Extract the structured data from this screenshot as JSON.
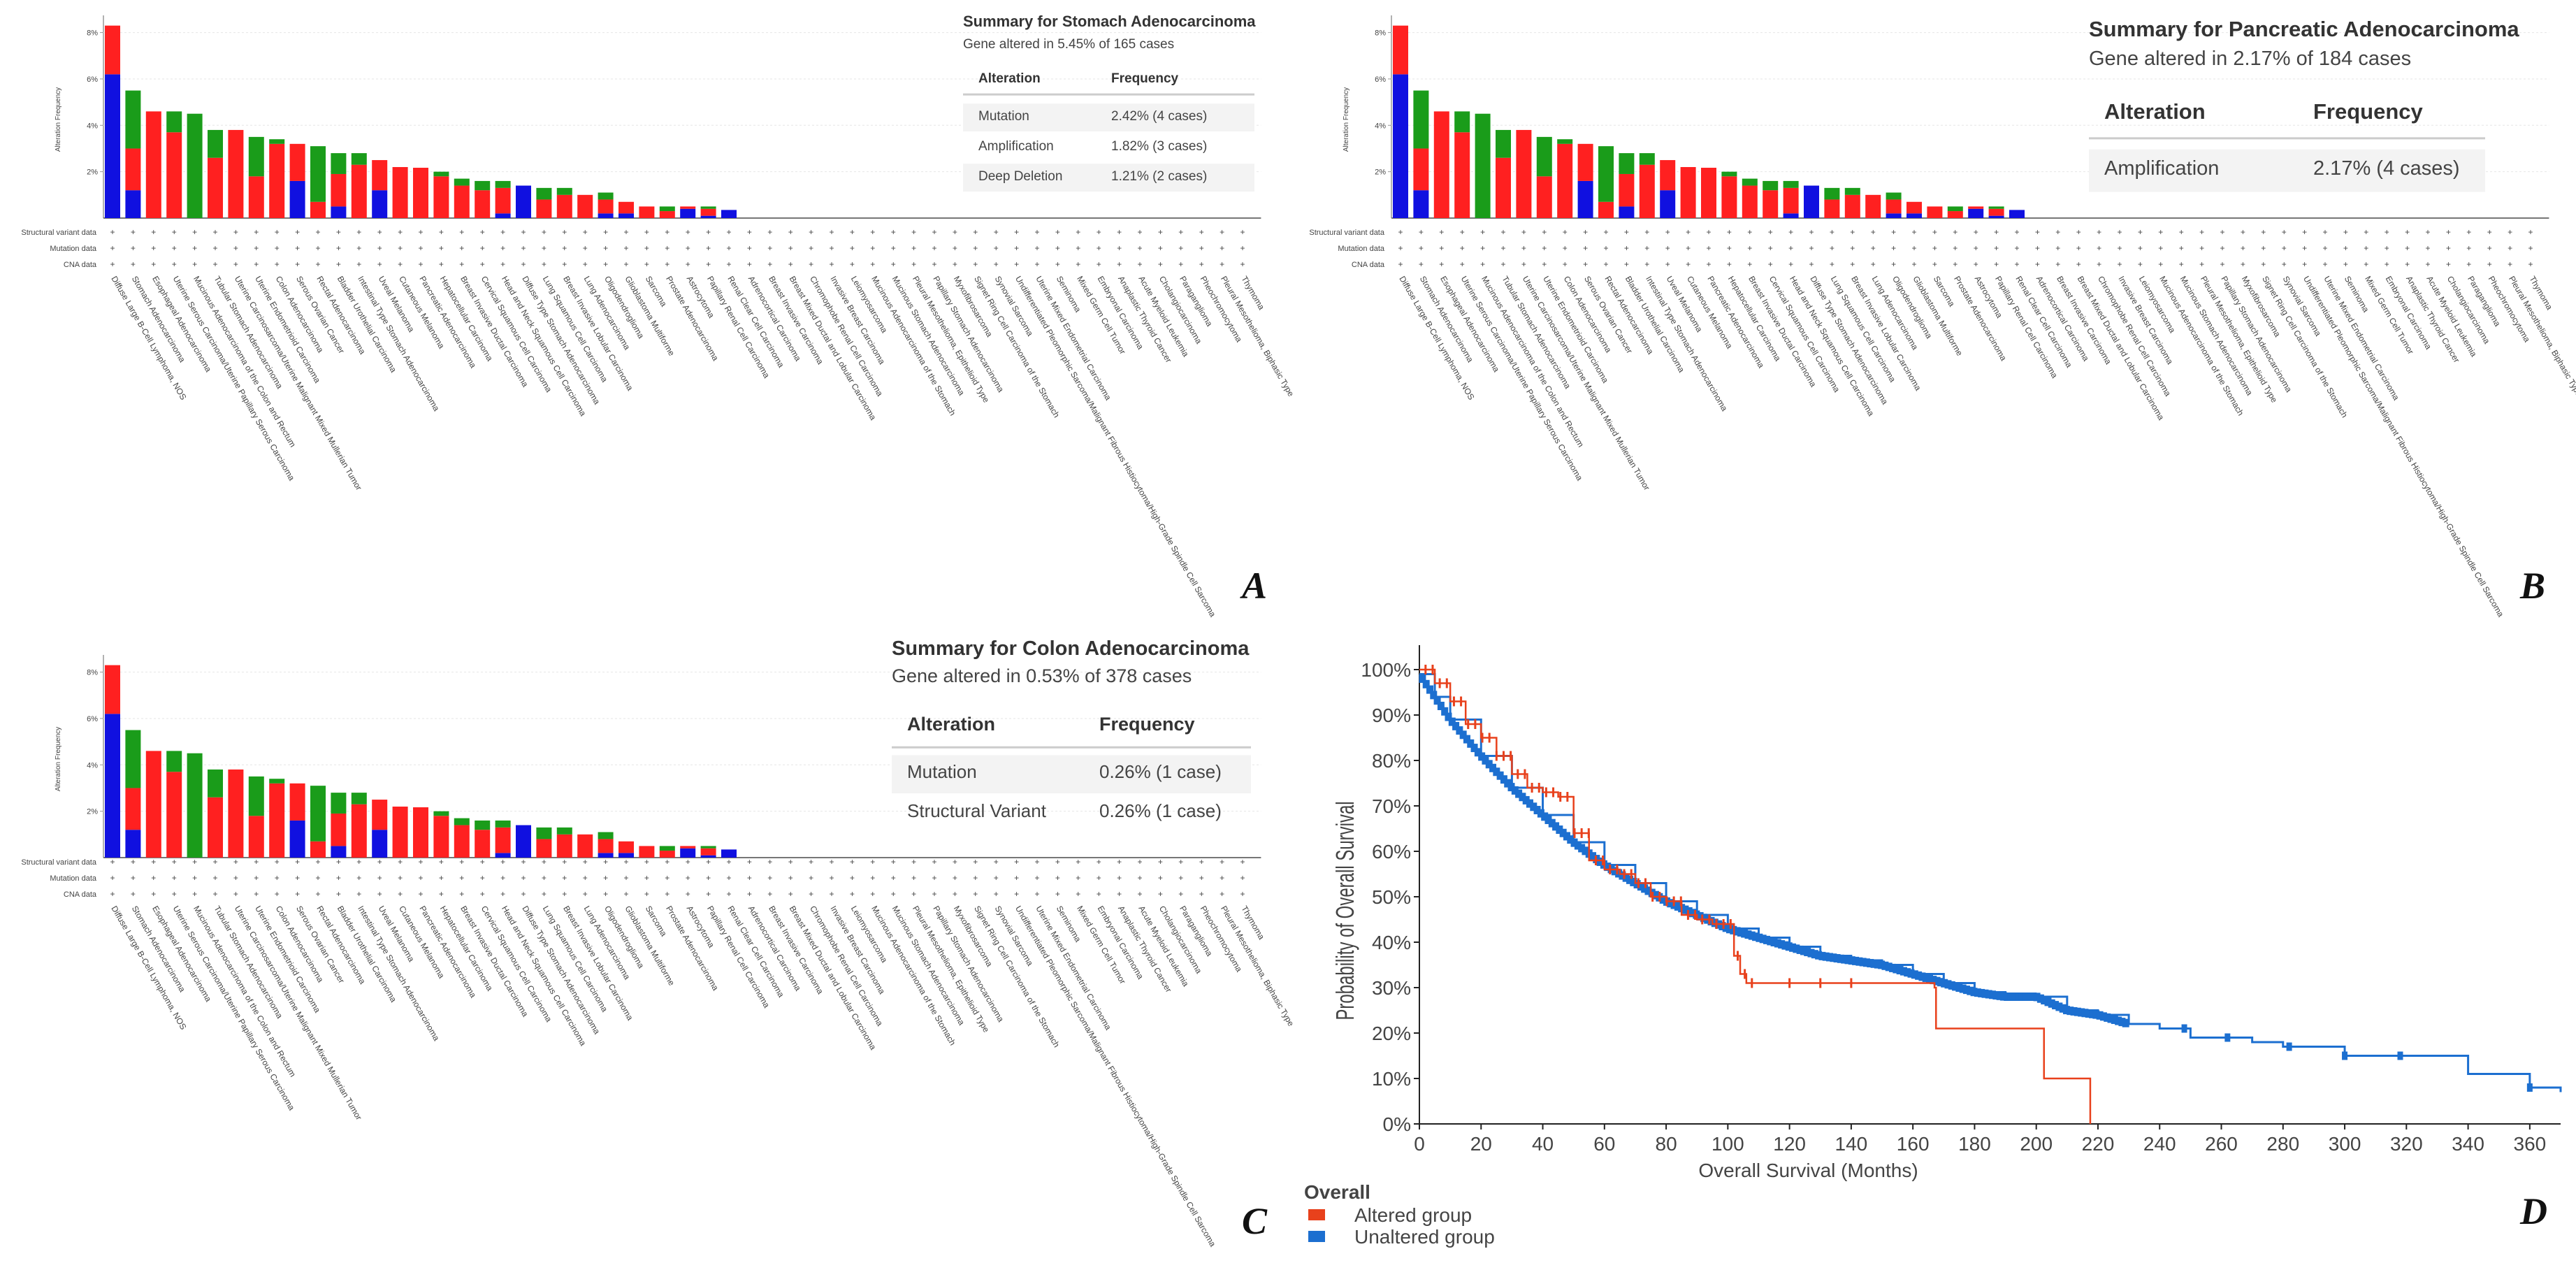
{
  "colors": {
    "mutation": "#1a9c1a",
    "amplification": "#ff2020",
    "deletion": "#1010e0",
    "altered": "#e8411c",
    "unaltered": "#1c6fd0"
  },
  "cancer_types": [
    {
      "label": "Diffuse Large B-Cell Lymphoma, NOS",
      "m": 0,
      "a": 2.1,
      "d": 6.2
    },
    {
      "label": "Stomach Adenocarcinoma",
      "m": 2.5,
      "a": 1.8,
      "d": 1.2
    },
    {
      "label": "Esophageal Adenocarcinoma",
      "m": 0,
      "a": 4.6,
      "d": 0
    },
    {
      "label": "Uterine Serous Carcinoma/Uterine Papillary Serous Carcinoma",
      "m": 0.9,
      "a": 3.7,
      "d": 0
    },
    {
      "label": "Mucinous Adenocarcinoma of the Colon and Rectum",
      "m": 4.5,
      "a": 0,
      "d": 0
    },
    {
      "label": "Tubular Stomach Adenocarcinoma",
      "m": 1.2,
      "a": 2.6,
      "d": 0
    },
    {
      "label": "Uterine Carcinosarcoma/Uterine Malignant Mixed Mullerian Tumor",
      "m": 0,
      "a": 3.8,
      "d": 0
    },
    {
      "label": "Uterine Endometrioid Carcinoma",
      "m": 1.7,
      "a": 1.8,
      "d": 0
    },
    {
      "label": "Colon Adenocarcinoma",
      "m": 0.2,
      "a": 3.2,
      "d": 0
    },
    {
      "label": "Serous Ovarian Cancer",
      "m": 0,
      "a": 1.6,
      "d": 1.6
    },
    {
      "label": "Rectal Adenocarcinoma",
      "m": 2.4,
      "a": 0.7,
      "d": 0
    },
    {
      "label": "Bladder Urothelial Carcinoma",
      "m": 0.9,
      "a": 1.4,
      "d": 0.5
    },
    {
      "label": "Intestinal Type Stomach Adenocarcinoma",
      "m": 0.5,
      "a": 2.3,
      "d": 0
    },
    {
      "label": "Uveal Melanoma",
      "m": 0,
      "a": 1.3,
      "d": 1.2
    },
    {
      "label": "Cutaneous Melanoma",
      "m": 0,
      "a": 2.2,
      "d": 0
    },
    {
      "label": "Pancreatic Adenocarcinoma",
      "m": 0,
      "a": 2.17,
      "d": 0
    },
    {
      "label": "Hepatocellular Carcinoma",
      "m": 0.2,
      "a": 1.8,
      "d": 0
    },
    {
      "label": "Breast Invasive Ductal Carcinoma",
      "m": 0.3,
      "a": 1.4,
      "d": 0
    },
    {
      "label": "Cervical Squamous Cell Carcinoma",
      "m": 0.4,
      "a": 1.2,
      "d": 0
    },
    {
      "label": "Head and Neck Squamous Cell Carcinoma",
      "m": 0.3,
      "a": 1.1,
      "d": 0.2
    },
    {
      "label": "Diffuse Type Stomach Adenocarcinoma",
      "m": 0,
      "a": 0,
      "d": 1.4
    },
    {
      "label": "Lung Squamous Cell Carcinoma",
      "m": 0.5,
      "a": 0.8,
      "d": 0
    },
    {
      "label": "Breast Invasive Lobular Carcinoma",
      "m": 0.3,
      "a": 1.0,
      "d": 0
    },
    {
      "label": "Lung Adenocarcinoma",
      "m": 0,
      "a": 1.0,
      "d": 0
    },
    {
      "label": "Oligodendroglioma",
      "m": 0.3,
      "a": 0.6,
      "d": 0.2
    },
    {
      "label": "Glioblastoma Multiforme",
      "m": 0,
      "a": 0.5,
      "d": 0.2
    },
    {
      "label": "Sarcoma",
      "m": 0,
      "a": 0.5,
      "d": 0
    },
    {
      "label": "Prostate Adenocarcinoma",
      "m": 0.2,
      "a": 0.3,
      "d": 0
    },
    {
      "label": "Astrocytoma",
      "m": 0,
      "a": 0.1,
      "d": 0.4
    },
    {
      "label": "Papillary Renal Cell Carcinoma",
      "m": 0.1,
      "a": 0.3,
      "d": 0.1
    },
    {
      "label": "Renal Clear Cell Carcinoma",
      "m": 0,
      "a": 0,
      "d": 0.35
    },
    {
      "label": "Adrenocortical Carcinoma",
      "m": 0,
      "a": 0,
      "d": 0
    },
    {
      "label": "Breast Invasive Carcinoma",
      "m": 0,
      "a": 0,
      "d": 0
    },
    {
      "label": "Breast Mixed Ductal and Lobular Carcinoma",
      "m": 0,
      "a": 0,
      "d": 0
    },
    {
      "label": "Chromophobe Renal Cell Carcinoma",
      "m": 0,
      "a": 0,
      "d": 0
    },
    {
      "label": "Invasive Breast Carcinoma",
      "m": 0,
      "a": 0,
      "d": 0
    },
    {
      "label": "Leiomyosarcoma",
      "m": 0,
      "a": 0,
      "d": 0
    },
    {
      "label": "Mucinous Adenocarcinoma of the Stomach",
      "m": 0,
      "a": 0,
      "d": 0
    },
    {
      "label": "Mucinous Stomach Adenocarcinoma",
      "m": 0,
      "a": 0,
      "d": 0
    },
    {
      "label": "Pleural Mesothelioma, Epithelioid Type",
      "m": 0,
      "a": 0,
      "d": 0
    },
    {
      "label": "Papillary Stomach Adenocarcinoma",
      "m": 0,
      "a": 0,
      "d": 0
    },
    {
      "label": "Myxofibrosarcoma",
      "m": 0,
      "a": 0,
      "d": 0
    },
    {
      "label": "Signet Ring Cell Carcinoma of the Stomach",
      "m": 0,
      "a": 0,
      "d": 0
    },
    {
      "label": "Synovial Sarcoma",
      "m": 0,
      "a": 0,
      "d": 0
    },
    {
      "label": "Undifferentiated Pleomorphic Sarcoma/Malignant Fibrous Histiocytoma/High-Grade Spindle Cell Sarcoma",
      "m": 0,
      "a": 0,
      "d": 0
    },
    {
      "label": "Uterine Mixed Endometrial Carcinoma",
      "m": 0,
      "a": 0,
      "d": 0
    },
    {
      "label": "Seminoma",
      "m": 0,
      "a": 0,
      "d": 0
    },
    {
      "label": "Mixed Germ Cell Tumor",
      "m": 0,
      "a": 0,
      "d": 0
    },
    {
      "label": "Embryonal Carcinoma",
      "m": 0,
      "a": 0,
      "d": 0
    },
    {
      "label": "Anaplastic Thyroid Cancer",
      "m": 0,
      "a": 0,
      "d": 0
    },
    {
      "label": "Acute Myeloid Leukemia",
      "m": 0,
      "a": 0,
      "d": 0
    },
    {
      "label": "Cholangiocarcinoma",
      "m": 0,
      "a": 0,
      "d": 0
    },
    {
      "label": "Paraganglioma",
      "m": 0,
      "a": 0,
      "d": 0
    },
    {
      "label": "Pheochromocytoma",
      "m": 0,
      "a": 0,
      "d": 0
    },
    {
      "label": "Pleural Mesothelioma, Biphasic Type",
      "m": 0,
      "a": 0,
      "d": 0
    },
    {
      "label": "Thymoma",
      "m": 0,
      "a": 0,
      "d": 0
    }
  ],
  "chart_data": [
    {
      "panel": "A",
      "type": "bar",
      "ylabel": "Alteration Frequency",
      "yticks": [
        "8%",
        "6%",
        "4%",
        "2%"
      ],
      "ylim": [
        0,
        8.5
      ],
      "row_labels": [
        "Structural variant data",
        "Mutation data",
        "CNA data"
      ],
      "summary": {
        "title": "Summary for Stomach Adenocarcinoma",
        "subtitle": "Gene altered in 5.45% of 165 cases",
        "col_alteration": "Alteration",
        "col_frequency": "Frequency",
        "rows": [
          {
            "alteration": "Mutation",
            "frequency": "2.42% (4 cases)"
          },
          {
            "alteration": "Amplification",
            "frequency": "1.82% (3 cases)"
          },
          {
            "alteration": "Deep Deletion",
            "frequency": "1.21% (2 cases)"
          }
        ]
      }
    },
    {
      "panel": "B",
      "type": "bar",
      "ylabel": "Alteration Frequency",
      "yticks": [
        "8%",
        "6%",
        "4%",
        "2%"
      ],
      "ylim": [
        0,
        8.5
      ],
      "row_labels": [
        "Structural variant data",
        "Mutation data",
        "CNA data"
      ],
      "summary": {
        "title": "Summary for Pancreatic Adenocarcinoma",
        "subtitle": "Gene altered in 2.17% of 184 cases",
        "col_alteration": "Alteration",
        "col_frequency": "Frequency",
        "rows": [
          {
            "alteration": "Amplification",
            "frequency": "2.17% (4 cases)"
          }
        ]
      }
    },
    {
      "panel": "C",
      "type": "bar",
      "ylabel": "Alteration Frequency",
      "yticks": [
        "8%",
        "6%",
        "4%",
        "2%"
      ],
      "ylim": [
        0,
        8.5
      ],
      "row_labels": [
        "Structural variant data",
        "Mutation data",
        "CNA data"
      ],
      "summary": {
        "title": "Summary for Colon Adenocarcinoma",
        "subtitle": "Gene altered in 0.53% of 378 cases",
        "col_alteration": "Alteration",
        "col_frequency": "Frequency",
        "rows": [
          {
            "alteration": "Mutation",
            "frequency": "0.26% (1 case)"
          },
          {
            "alteration": "Structural Variant",
            "frequency": "0.26% (1 case)"
          }
        ]
      }
    },
    {
      "panel": "D",
      "type": "line",
      "title": "Overall",
      "xlabel": "Overall Survival (Months)",
      "ylabel": "Probability of Overall Survival",
      "xlim": [
        0,
        370
      ],
      "ylim": [
        0,
        100
      ],
      "xticks": [
        "0",
        "20",
        "40",
        "60",
        "80",
        "100",
        "120",
        "140",
        "160",
        "180",
        "200",
        "220",
        "240",
        "260",
        "280",
        "300",
        "320",
        "340",
        "360"
      ],
      "yticks": [
        "0%",
        "10%",
        "20%",
        "30%",
        "40%",
        "50%",
        "60%",
        "70%",
        "80%",
        "90%",
        "100%"
      ],
      "series": [
        {
          "name": "Altered group",
          "x": [
            0,
            5,
            10,
            15,
            20,
            25,
            30,
            35,
            40,
            45,
            50,
            55,
            60,
            65,
            70,
            75,
            80,
            85,
            90,
            95,
            100,
            102,
            104,
            106,
            110,
            120,
            130,
            150,
            167,
            167.5,
            202,
            202.5,
            217,
            217.5
          ],
          "y": [
            100,
            97,
            93,
            88,
            85,
            81,
            77,
            74,
            73,
            72,
            64,
            58,
            56,
            55,
            53,
            50,
            49,
            46,
            45,
            44,
            44,
            37,
            33,
            31,
            31,
            31,
            31,
            31,
            30,
            21,
            21,
            10,
            10,
            0
          ]
        },
        {
          "name": "Unaltered group",
          "x": [
            0,
            5,
            10,
            20,
            30,
            40,
            50,
            60,
            70,
            80,
            90,
            100,
            110,
            120,
            130,
            140,
            150,
            160,
            170,
            180,
            190,
            200,
            210,
            220,
            230,
            240,
            250,
            260,
            270,
            280,
            300,
            320,
            340,
            360,
            370
          ],
          "y": [
            99,
            94,
            89,
            81,
            74,
            68,
            62,
            57,
            53,
            49,
            46,
            43,
            41,
            39,
            37,
            36,
            35,
            33,
            31,
            29,
            28,
            28,
            25,
            24,
            22,
            21,
            19,
            19,
            18,
            17,
            15,
            15,
            11,
            8,
            7
          ]
        }
      ]
    }
  ]
}
